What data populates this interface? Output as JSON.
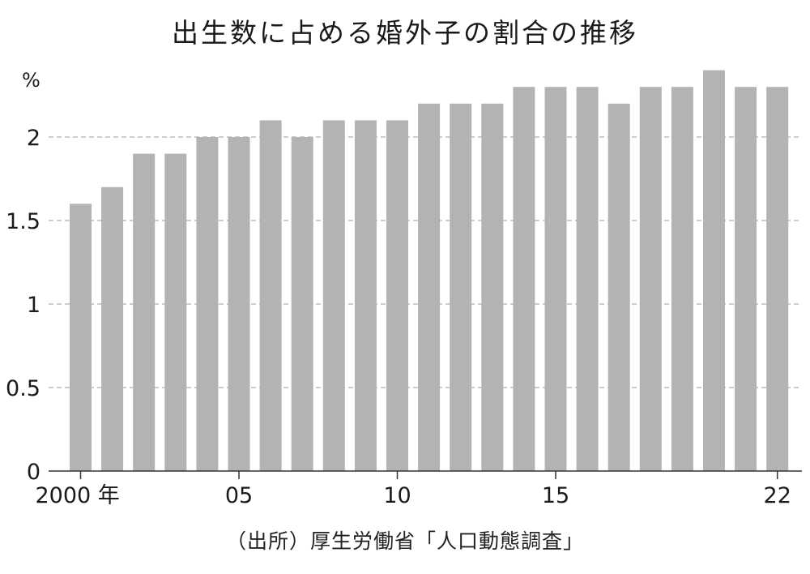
{
  "chart_data": {
    "type": "bar",
    "title": "出生数に占める婚外子の割合の推移",
    "ylabel": "%",
    "xlabel": "",
    "categories": [
      "2000",
      "2001",
      "2002",
      "2003",
      "2004",
      "2005",
      "2006",
      "2007",
      "2008",
      "2009",
      "2010",
      "2011",
      "2012",
      "2013",
      "2014",
      "2015",
      "2016",
      "2017",
      "2018",
      "2019",
      "2020",
      "2021",
      "2022"
    ],
    "values": [
      1.6,
      1.7,
      1.9,
      1.9,
      2.0,
      2.0,
      2.1,
      2.0,
      2.1,
      2.1,
      2.1,
      2.2,
      2.2,
      2.2,
      2.3,
      2.3,
      2.3,
      2.2,
      2.3,
      2.3,
      2.4,
      2.3,
      2.3
    ],
    "ylim": [
      0,
      2.4
    ],
    "yticks": [
      0,
      0.5,
      1,
      1.5,
      2
    ],
    "ytick_labels": [
      "0",
      "0.5",
      "1",
      "1.5",
      "2"
    ],
    "xtick_labels": [
      {
        "category": "2000",
        "label": "2000 年"
      },
      {
        "category": "2005",
        "label": "05"
      },
      {
        "category": "2010",
        "label": "10"
      },
      {
        "category": "2015",
        "label": "15"
      },
      {
        "category": "2022",
        "label": "22"
      }
    ],
    "grid": "horizontal-dashed",
    "bar_color": "#b3b3b3",
    "axis_color": "#333333",
    "grid_color": "#9a9a9a"
  },
  "source_note": "（出所）厚生労働省「人口動態調査」"
}
